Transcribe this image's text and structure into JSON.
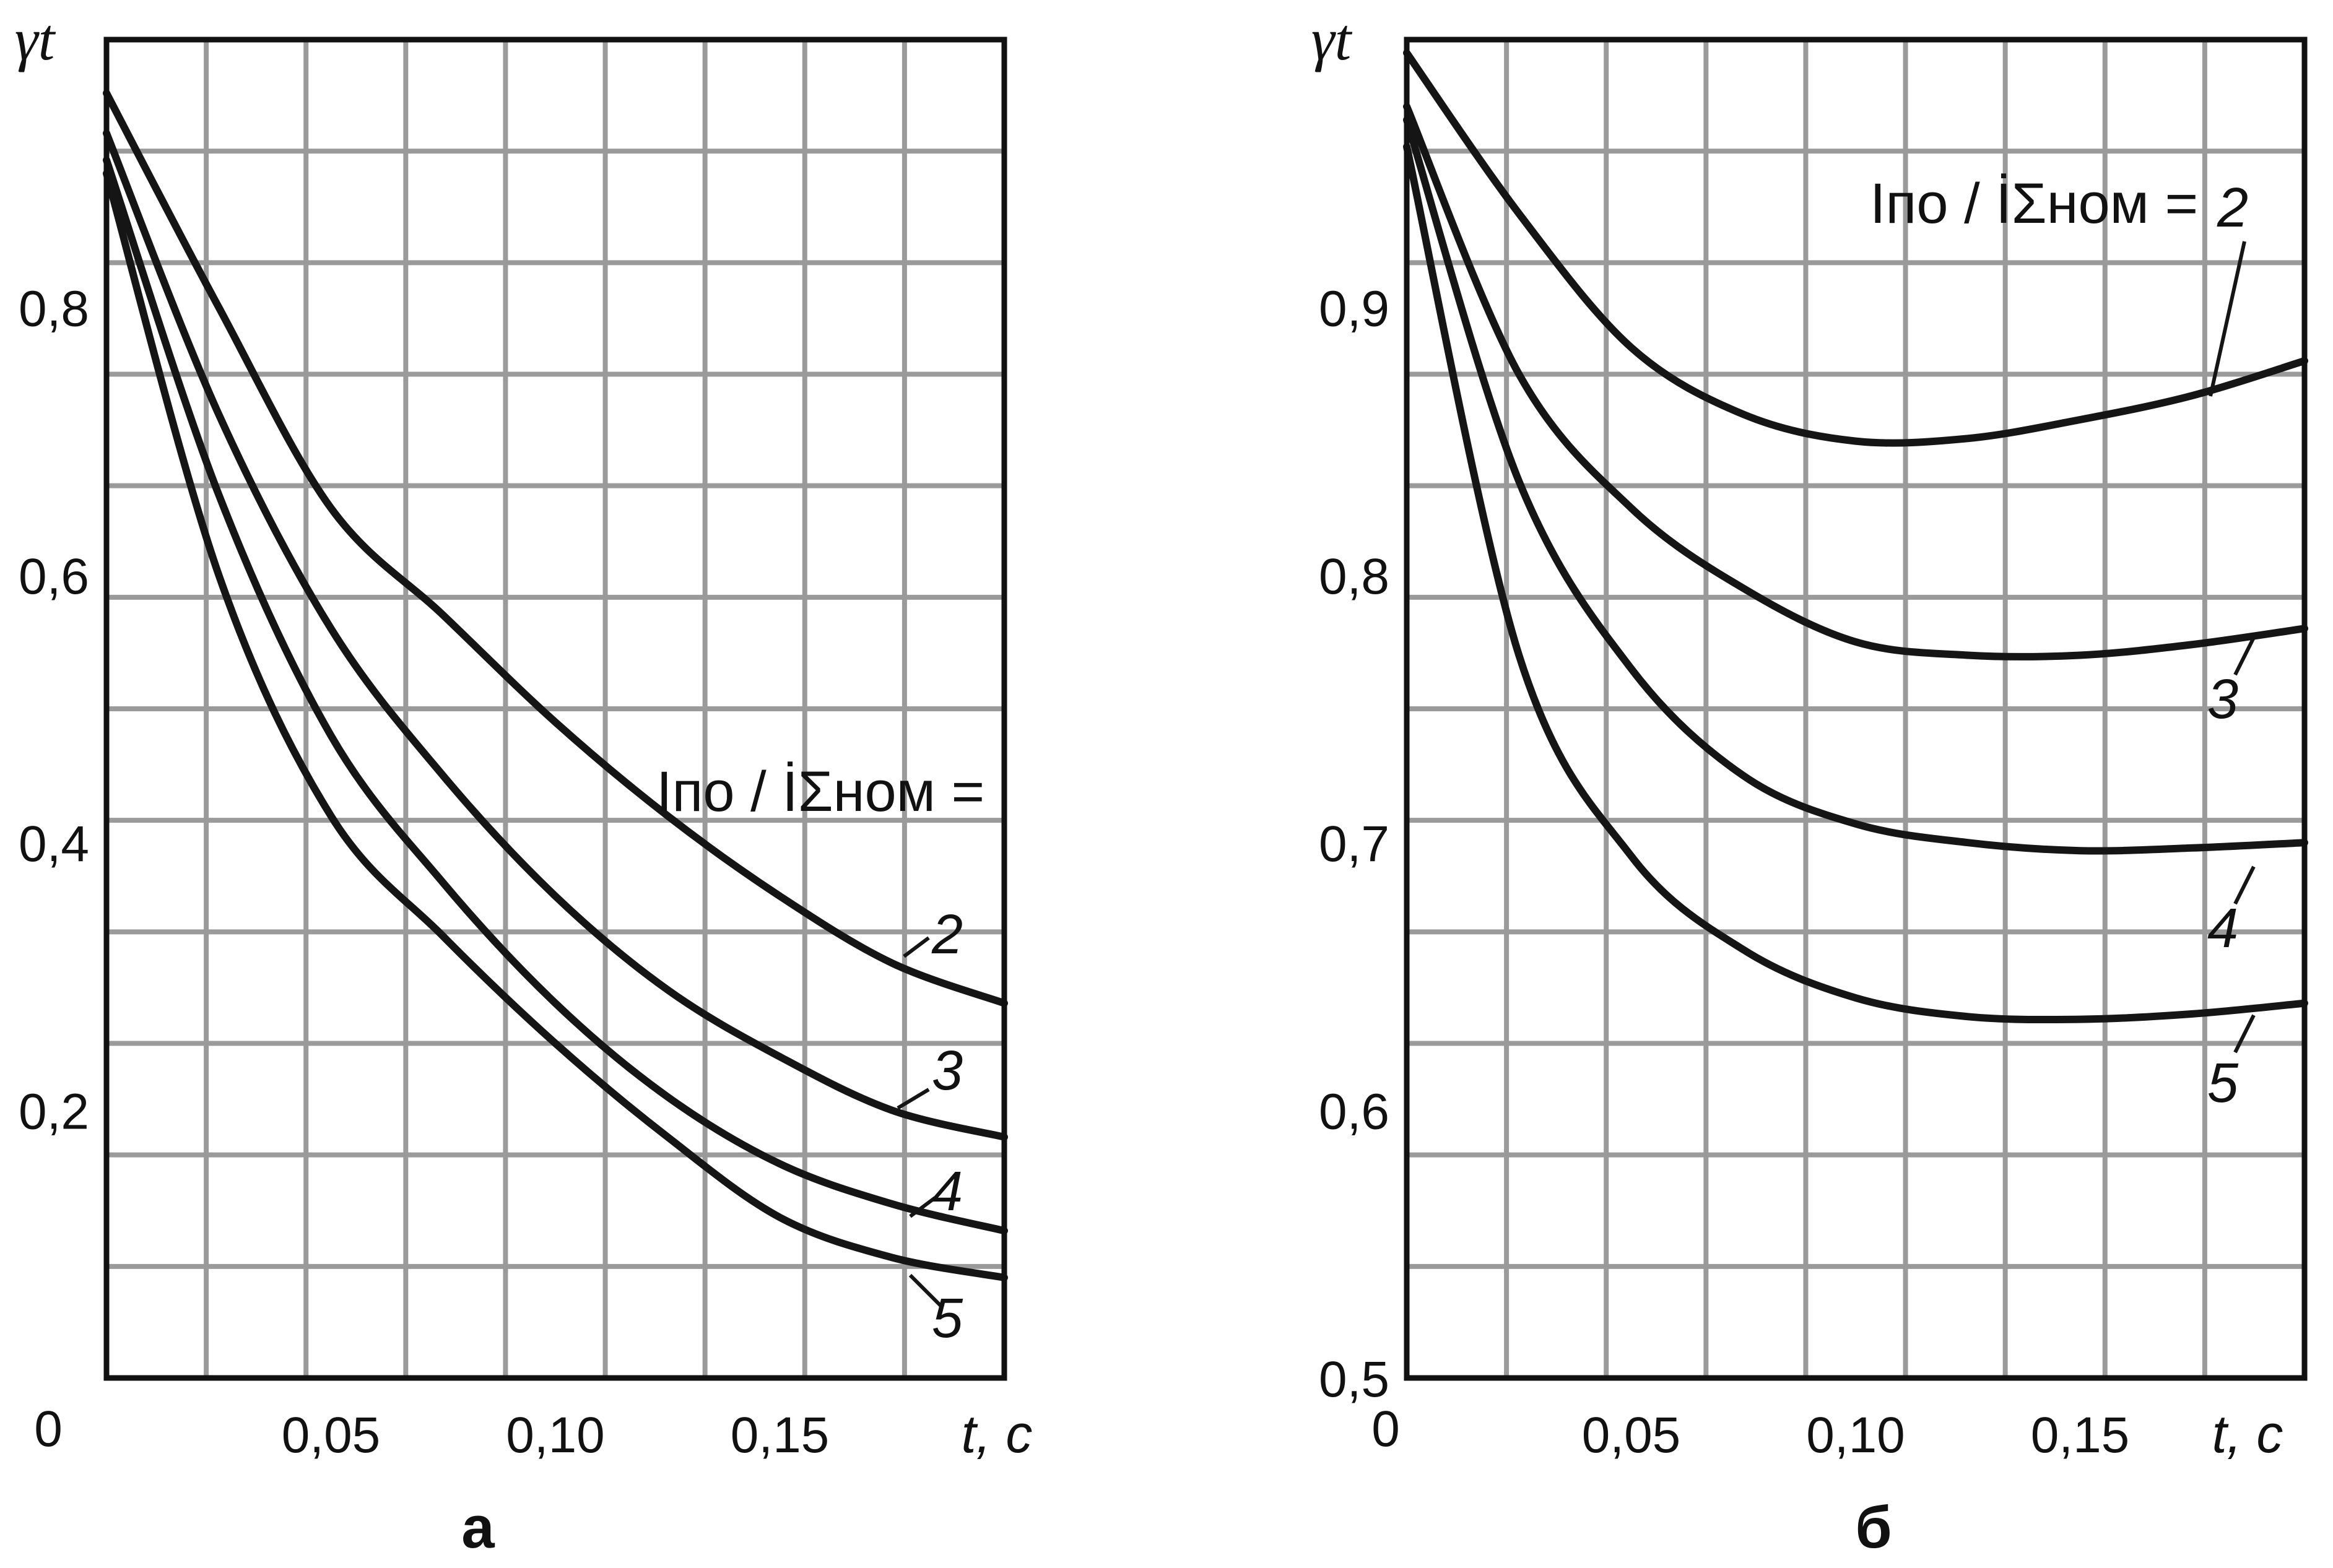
{
  "chart_data": [
    {
      "type": "line",
      "caption": "а",
      "ylabel": "γt",
      "xlabel": "t, с",
      "xlim": [
        0,
        0.2
      ],
      "ylim": [
        0,
        1.0
      ],
      "x_ticks": [
        0.05,
        0.1,
        0.15
      ],
      "x_tick_labels": [
        "0,05",
        "0,10",
        "0,15"
      ],
      "y_ticks": [
        0.2,
        0.4,
        0.6,
        0.8
      ],
      "y_tick_labels": [
        "0,2",
        "0,4",
        "0,6",
        "0,8"
      ],
      "origin_label": "0",
      "grid": true,
      "legend_title": "Iпо / İΣном =",
      "series": [
        {
          "name": "2",
          "x": [
            0,
            0.025,
            0.05,
            0.075,
            0.1,
            0.125,
            0.15,
            0.175,
            0.2
          ],
          "values": [
            0.96,
            0.8,
            0.65,
            0.57,
            0.49,
            0.42,
            0.36,
            0.31,
            0.28
          ]
        },
        {
          "name": "3",
          "x": [
            0,
            0.025,
            0.05,
            0.075,
            0.1,
            0.125,
            0.15,
            0.175,
            0.2
          ],
          "values": [
            0.93,
            0.72,
            0.56,
            0.45,
            0.36,
            0.29,
            0.24,
            0.2,
            0.18
          ]
        },
        {
          "name": "4",
          "x": [
            0,
            0.025,
            0.05,
            0.075,
            0.1,
            0.125,
            0.15,
            0.175,
            0.2
          ],
          "values": [
            0.91,
            0.66,
            0.48,
            0.37,
            0.28,
            0.21,
            0.16,
            0.13,
            0.11
          ]
        },
        {
          "name": "5",
          "x": [
            0,
            0.025,
            0.05,
            0.075,
            0.1,
            0.125,
            0.15,
            0.175,
            0.2
          ],
          "values": [
            0.9,
            0.6,
            0.42,
            0.33,
            0.25,
            0.18,
            0.12,
            0.09,
            0.075
          ]
        }
      ]
    },
    {
      "type": "line",
      "caption": "б",
      "ylabel": "γt",
      "xlabel": "t, с",
      "xlim": [
        0,
        0.2
      ],
      "ylim": [
        0.5,
        1.0
      ],
      "x_ticks": [
        0.05,
        0.1,
        0.15
      ],
      "x_tick_labels": [
        "0,05",
        "0,10",
        "0,15"
      ],
      "y_ticks": [
        0.5,
        0.6,
        0.7,
        0.8,
        0.9
      ],
      "y_tick_labels": [
        "0,5",
        "0,6",
        "0,7",
        "0,8",
        "0,9"
      ],
      "origin_label": "0",
      "grid": true,
      "legend_title": "Iпо / İΣном =",
      "series": [
        {
          "name": "2",
          "x": [
            0,
            0.025,
            0.05,
            0.075,
            0.1,
            0.125,
            0.15,
            0.175,
            0.2
          ],
          "values": [
            0.995,
            0.935,
            0.885,
            0.86,
            0.85,
            0.851,
            0.858,
            0.867,
            0.88
          ]
        },
        {
          "name": "3",
          "x": [
            0,
            0.025,
            0.05,
            0.075,
            0.1,
            0.125,
            0.15,
            0.175,
            0.2
          ],
          "values": [
            0.975,
            0.875,
            0.825,
            0.795,
            0.775,
            0.77,
            0.77,
            0.774,
            0.78
          ]
        },
        {
          "name": "4",
          "x": [
            0,
            0.025,
            0.05,
            0.075,
            0.1,
            0.125,
            0.15,
            0.175,
            0.2
          ],
          "values": [
            0.97,
            0.835,
            0.765,
            0.725,
            0.707,
            0.7,
            0.697,
            0.698,
            0.7
          ]
        },
        {
          "name": "5",
          "x": [
            0,
            0.025,
            0.05,
            0.075,
            0.1,
            0.125,
            0.15,
            0.175,
            0.2
          ],
          "values": [
            0.96,
            0.77,
            0.695,
            0.66,
            0.642,
            0.635,
            0.634,
            0.636,
            0.64
          ]
        }
      ]
    }
  ]
}
